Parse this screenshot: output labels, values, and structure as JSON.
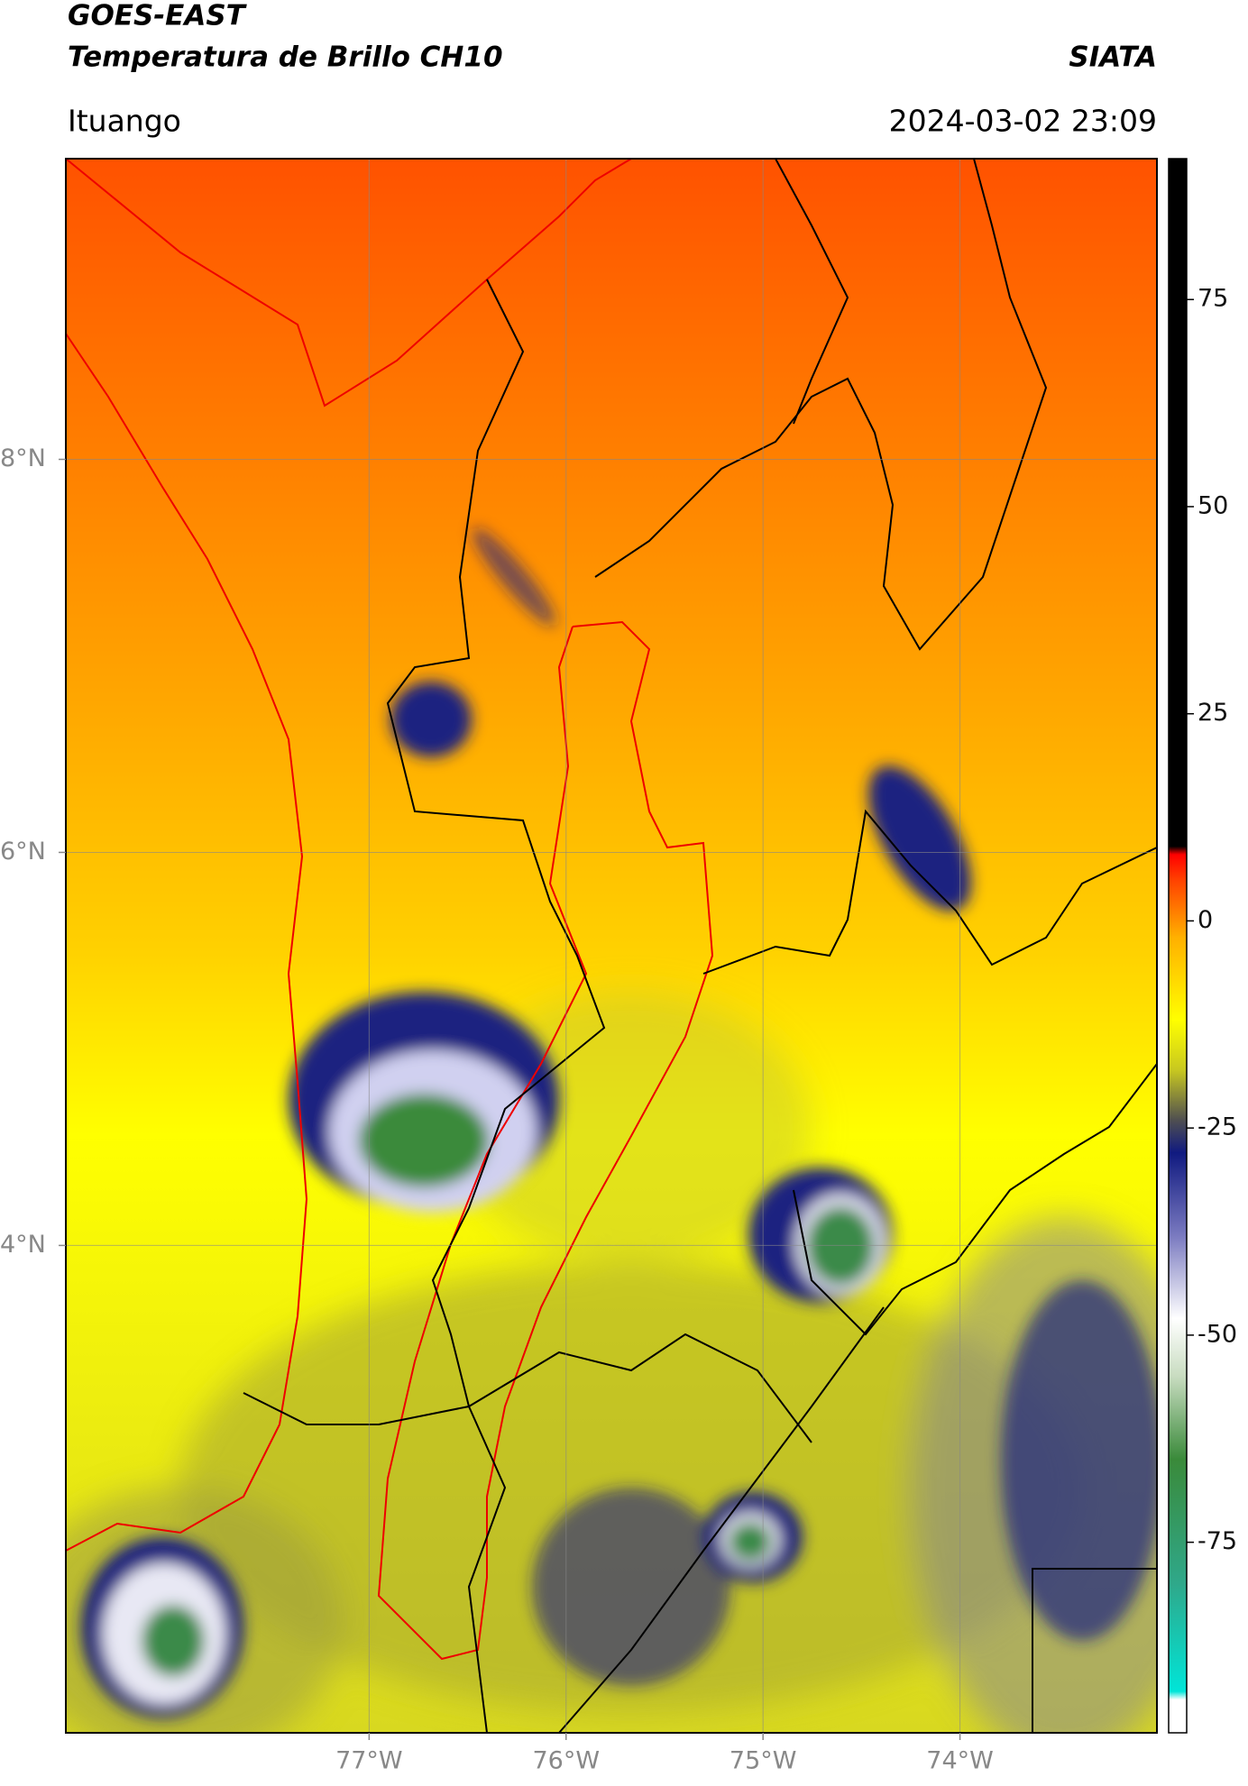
{
  "header": {
    "title": "GOES-EAST",
    "subtitle": "Temperatura de Brillo CH10",
    "source": "SIATA",
    "location": "Ituango",
    "timestamp": "2024-03-02 23:09"
  },
  "map": {
    "xlim": [
      -78.54,
      -73.0
    ],
    "ylim": [
      1.52,
      9.53
    ],
    "xticks": [
      {
        "value": -77,
        "label": "77°W"
      },
      {
        "value": -76,
        "label": "76°W"
      },
      {
        "value": -75,
        "label": "75°W"
      },
      {
        "value": -74,
        "label": "74°W"
      }
    ],
    "yticks": [
      {
        "value": 4,
        "label": "4°N"
      },
      {
        "value": 6,
        "label": "6°N"
      },
      {
        "value": 8,
        "label": "8°N"
      }
    ],
    "grid": true
  },
  "colorbar": {
    "clim": [
      -98,
      92
    ],
    "ticks": [
      75,
      50,
      25,
      0,
      -25,
      -50,
      -75
    ],
    "stops": [
      {
        "value": -98,
        "color": "#ffffff"
      },
      {
        "value": -94,
        "color": "#ffffff"
      },
      {
        "value": -93,
        "color": "#00e5d8"
      },
      {
        "value": -80,
        "color": "#2fa88a"
      },
      {
        "value": -65,
        "color": "#3a8a3a"
      },
      {
        "value": -55,
        "color": "#c8dcc0"
      },
      {
        "value": -48,
        "color": "#ffffff"
      },
      {
        "value": -38,
        "color": "#7a7ac0"
      },
      {
        "value": -28,
        "color": "#101a80"
      },
      {
        "value": -24,
        "color": "#505050"
      },
      {
        "value": -18,
        "color": "#c8c820"
      },
      {
        "value": -12,
        "color": "#ffff00"
      },
      {
        "value": -2,
        "color": "#ffb000"
      },
      {
        "value": 5,
        "color": "#ff4000"
      },
      {
        "value": 8,
        "color": "#ff0000"
      },
      {
        "value": 9,
        "color": "#000000"
      },
      {
        "value": 92,
        "color": "#000000"
      }
    ]
  }
}
